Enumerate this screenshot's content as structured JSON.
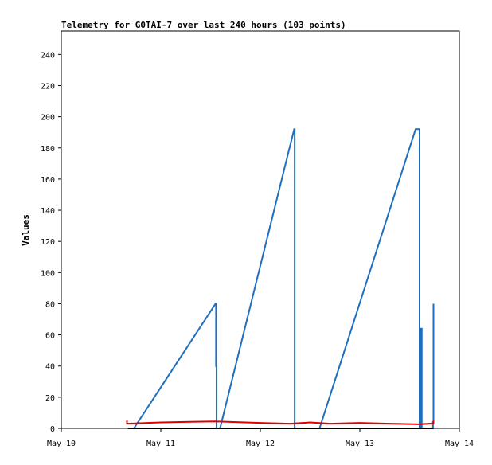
{
  "chart_data": {
    "type": "line",
    "title": "Telemetry for G0TAI-7 over last 240 hours (103 points)",
    "xlabel": "",
    "ylabel": "Values",
    "x_ticks": [
      "May 10",
      "May 11",
      "May 12",
      "May 13",
      "May 14"
    ],
    "xlim": [
      "May 10",
      "May 14"
    ],
    "ylim": [
      0,
      255
    ],
    "y_ticks": [
      0,
      20,
      40,
      60,
      80,
      100,
      120,
      140,
      160,
      180,
      200,
      220,
      240
    ],
    "grid": false,
    "series": [
      {
        "color": "#1f6fbf",
        "x": [
          0.73,
          1.55,
          1.555,
          1.555,
          1.56,
          1.56,
          1.595,
          2.34,
          2.345,
          2.345,
          2.595,
          3.56,
          3.6,
          3.6,
          3.612,
          3.612,
          3.622,
          3.622,
          3.735,
          3.735,
          3.74,
          3.74
        ],
        "y": [
          0,
          80,
          80,
          40,
          40,
          0,
          0,
          192,
          192,
          0,
          0,
          192,
          192,
          0,
          0,
          64,
          64,
          0,
          0,
          4,
          4,
          80
        ]
      },
      {
        "color": "#e00000",
        "x": [
          0.66,
          0.66,
          1.0,
          1.3,
          1.55,
          2.0,
          2.3,
          2.5,
          2.7,
          3.0,
          3.3,
          3.6,
          3.74,
          3.74
        ],
        "y": [
          5,
          3,
          3.8,
          4.2,
          4.5,
          3.5,
          3,
          3.8,
          3,
          3.5,
          3,
          2.6,
          3.2,
          5
        ]
      },
      {
        "color": "#000000",
        "x": [
          0.67,
          3.74
        ],
        "y": [
          0,
          0
        ]
      }
    ]
  }
}
